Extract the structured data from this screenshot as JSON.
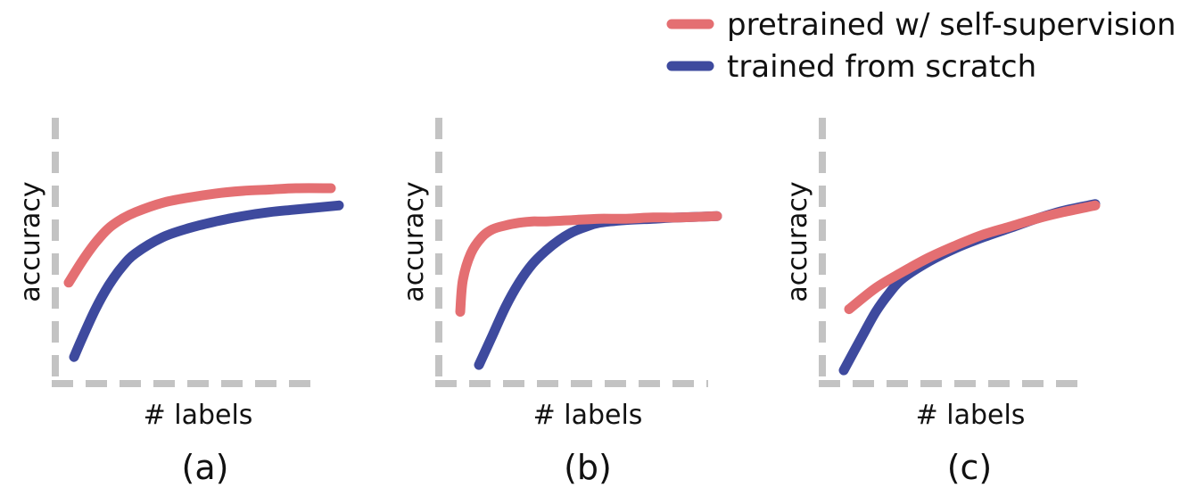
{
  "legend": {
    "items": [
      {
        "label": "pretrained w/ self-supervision",
        "color": "#e46f72"
      },
      {
        "label": "trained from scratch",
        "color": "#3e4a9e"
      }
    ]
  },
  "colors": {
    "axis": "#c3c3c3"
  },
  "chart_data": [
    {
      "type": "line",
      "panel_label": "(a)",
      "xlabel": "# labels",
      "ylabel": "accuracy",
      "xlim": [
        0,
        10
      ],
      "ylim": [
        0,
        10
      ],
      "series": [
        {
          "name": "pretrained w/ self-supervision",
          "color": "#e46f72",
          "x": [
            0.5,
            1.0,
            1.5,
            2.0,
            2.5,
            3.0,
            4.0,
            5.0,
            6.0,
            7.0,
            8.0,
            9.0,
            10.3
          ],
          "y": [
            3.8,
            4.6,
            5.3,
            5.85,
            6.2,
            6.45,
            6.8,
            7.0,
            7.15,
            7.25,
            7.3,
            7.35,
            7.35
          ]
        },
        {
          "name": "trained from scratch",
          "color": "#3e4a9e",
          "x": [
            0.7,
            1.0,
            1.5,
            2.0,
            2.5,
            3.0,
            4.0,
            5.0,
            6.0,
            7.0,
            8.0,
            9.0,
            10.6
          ],
          "y": [
            1.0,
            1.7,
            2.8,
            3.7,
            4.4,
            4.9,
            5.5,
            5.85,
            6.1,
            6.3,
            6.45,
            6.55,
            6.7
          ]
        }
      ]
    },
    {
      "type": "line",
      "panel_label": "(b)",
      "xlabel": "# labels",
      "ylabel": "accuracy",
      "xlim": [
        0,
        10
      ],
      "ylim": [
        0,
        10
      ],
      "series": [
        {
          "name": "pretrained w/ self-supervision",
          "color": "#e46f72",
          "x": [
            0.8,
            0.9,
            1.2,
            1.6,
            2.0,
            2.5,
            3.0,
            3.5,
            4.0,
            5.0,
            6.0,
            7.0,
            8.0,
            9.0,
            10.4
          ],
          "y": [
            2.7,
            3.9,
            4.9,
            5.5,
            5.8,
            5.95,
            6.05,
            6.1,
            6.1,
            6.15,
            6.2,
            6.2,
            6.25,
            6.25,
            6.3
          ]
        },
        {
          "name": "trained from scratch",
          "color": "#3e4a9e",
          "x": [
            1.5,
            2.0,
            2.5,
            3.0,
            3.5,
            4.0,
            4.5,
            5.0,
            5.5,
            6.0,
            7.0,
            8.0,
            9.0,
            10.4
          ],
          "y": [
            0.7,
            1.8,
            2.9,
            3.8,
            4.5,
            5.0,
            5.4,
            5.7,
            5.9,
            6.05,
            6.15,
            6.2,
            6.25,
            6.3
          ]
        }
      ]
    },
    {
      "type": "line",
      "panel_label": "(c)",
      "xlabel": "# labels",
      "ylabel": "accuracy",
      "xlim": [
        0,
        10
      ],
      "ylim": [
        0,
        10
      ],
      "series": [
        {
          "name": "pretrained w/ self-supervision",
          "color": "#e46f72",
          "x": [
            1.0,
            2.0,
            3.0,
            4.0,
            5.0,
            6.0,
            7.0,
            8.0,
            9.0,
            10.2
          ],
          "y": [
            2.8,
            3.6,
            4.2,
            4.75,
            5.2,
            5.6,
            5.9,
            6.2,
            6.45,
            6.7
          ]
        },
        {
          "name": "trained from scratch",
          "color": "#3e4a9e",
          "x": [
            0.8,
            1.5,
            2.0,
            2.5,
            3.0,
            4.0,
            5.0,
            6.0,
            7.0,
            8.0,
            9.0,
            10.2
          ],
          "y": [
            0.5,
            1.8,
            2.7,
            3.4,
            3.95,
            4.6,
            5.1,
            5.5,
            5.85,
            6.2,
            6.5,
            6.75
          ]
        }
      ]
    }
  ]
}
